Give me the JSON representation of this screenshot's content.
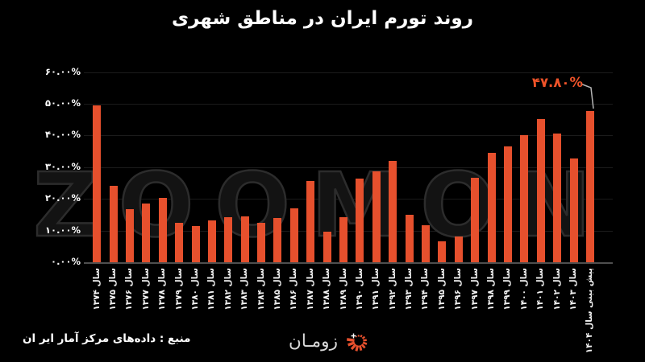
{
  "title": "روند تورم ایران در مناطق شهری",
  "watermark": "ZOOMON",
  "colors": {
    "background": "#000000",
    "bar": "#e6502d",
    "annotation": "#ef5329",
    "axis_line": "#4f4f4f",
    "gridline": "#1b1b1b",
    "text": "#ffffff",
    "watermark_stroke": "#2c2c2c"
  },
  "chart_data": {
    "type": "bar",
    "title": "روند تورم ایران در مناطق شهری",
    "xlabel": "",
    "ylabel": "",
    "ylim": [
      0,
      60
    ],
    "grid": "horizontal",
    "legend": "none",
    "bar_color": "#e6502d",
    "y_ticks": [
      {
        "value": 60,
        "label": "۶۰.۰۰%"
      },
      {
        "value": 50,
        "label": "۵۰.۰۰%"
      },
      {
        "value": 40,
        "label": "۴۰.۰۰%"
      },
      {
        "value": 30,
        "label": "۳۰.۰۰%"
      },
      {
        "value": 20,
        "label": "۲۰.۰۰%"
      },
      {
        "value": 10,
        "label": "۱۰.۰۰%"
      },
      {
        "value": 0,
        "label": "۰.۰۰%"
      }
    ],
    "categories": [
      "سال ۱۳۷۴",
      "سال ۱۳۷۵",
      "سال ۱۳۷۶",
      "سال ۱۳۷۷",
      "سال ۱۳۷۸",
      "سال ۱۳۷۹",
      "سال ۱۳۸۰",
      "سال ۱۳۸۱",
      "سال ۱۳۸۲",
      "سال ۱۳۸۳",
      "سال ۱۳۸۴",
      "سال ۱۳۸۵",
      "سال ۱۳۸۶",
      "سال ۱۳۸۷",
      "سال ۱۳۸۸",
      "سال ۱۳۸۹",
      "سال ۱۳۹۰",
      "سال ۱۳۹۱",
      "سال ۱۳۹۲",
      "سال ۱۳۹۳",
      "سال ۱۳۹۴",
      "سال ۱۳۹۵",
      "سال ۱۳۹۶",
      "سال ۱۳۹۷",
      "سال ۱۳۹۸",
      "سال ۱۳۹۹",
      "سال ۱۴۰۰",
      "سال ۱۴۰۱",
      "سال ۱۴۰۲",
      "سال ۱۴۰۳",
      "پیش بینی سال ۱۴۰۴"
    ],
    "values": [
      49.5,
      24.1,
      16.7,
      18.6,
      20.3,
      12.5,
      11.5,
      13.2,
      14.2,
      14.5,
      12.4,
      13.9,
      17.1,
      25.6,
      9.6,
      14.2,
      26.4,
      28.6,
      32.1,
      14.9,
      11.8,
      6.7,
      8.0,
      26.6,
      34.5,
      36.5,
      40.2,
      45.2,
      40.7,
      32.7,
      47.8
    ],
    "annotation": {
      "text": "۴۷.۸۰%",
      "value": 47.8,
      "category": "پیش بینی سال ۱۴۰۴"
    }
  },
  "footer": {
    "source": "منبع : داده‌های مرکز آمار ایر ان",
    "logo_text": "زومـان",
    "logo_icon": "radial-burst-icon"
  }
}
